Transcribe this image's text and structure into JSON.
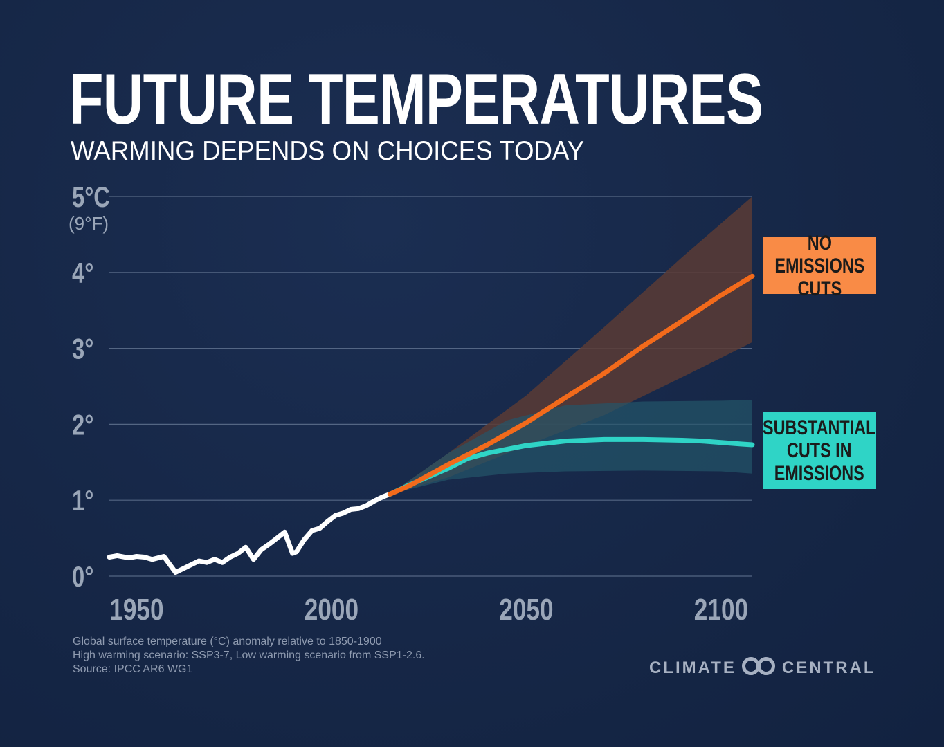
{
  "header": {
    "title": "FUTURE TEMPERATURES",
    "subtitle": "WARMING DEPENDS ON CHOICES TODAY"
  },
  "labels": {
    "high_scenario": "NO EMISSIONS\nCUTS",
    "low_scenario": "SUBSTANTIAL\nCUTS IN\nEMISSIONS"
  },
  "notes": [
    "Global surface temperature (°C) anomaly relative to 1850-1900",
    "High warming scenario: SSP3-7, Low warming scenario from SSP1-2.6.",
    "Source: IPCC AR6 WG1"
  ],
  "brand": {
    "left": "CLIMATE",
    "right": "CENTRAL",
    "logo_icon": "interlocking-rings-icon"
  },
  "colors": {
    "background": "#162747",
    "historical": "#ffffff",
    "high": "#f26a1b",
    "high_band": "#5a3b35",
    "low": "#2fd4c6",
    "low_band": "#24566a",
    "grid": "#5b6d8a",
    "axis_text": "#9aa6b8"
  },
  "chart_data": {
    "type": "line",
    "title": "FUTURE TEMPERATURES",
    "subtitle": "WARMING DEPENDS ON CHOICES TODAY",
    "xlabel": "",
    "ylabel": "Global surface temperature (°C) anomaly relative to 1850-1900",
    "xlim": [
      1943,
      2108
    ],
    "ylim": [
      0,
      5
    ],
    "x_ticks": [
      1950,
      2000,
      2050,
      2100
    ],
    "x_tick_labels": [
      "1950",
      "2000",
      "2050",
      "2100"
    ],
    "y_ticks": [
      0,
      1,
      2,
      3,
      4,
      5
    ],
    "y_tick_labels": [
      "0°",
      "1°",
      "2°",
      "3°",
      "4°",
      "5°C"
    ],
    "y_top_unit": "(9°F)",
    "grid": true,
    "series": [
      {
        "name": "Historical",
        "color": "#ffffff",
        "x": [
          1943,
          1945,
          1948,
          1950,
          1952,
          1954,
          1957,
          1960,
          1962,
          1964,
          1966,
          1968,
          1970,
          1972,
          1974,
          1976,
          1978,
          1980,
          1982,
          1984,
          1986,
          1988,
          1990,
          1991,
          1993,
          1995,
          1997,
          1999,
          2001,
          2003,
          2005,
          2007,
          2009,
          2011,
          2013,
          2015
        ],
        "values": [
          0.25,
          0.27,
          0.24,
          0.26,
          0.25,
          0.22,
          0.26,
          0.05,
          0.1,
          0.15,
          0.2,
          0.18,
          0.22,
          0.18,
          0.25,
          0.3,
          0.38,
          0.22,
          0.35,
          0.42,
          0.5,
          0.58,
          0.3,
          0.32,
          0.48,
          0.6,
          0.63,
          0.72,
          0.8,
          0.83,
          0.88,
          0.89,
          0.93,
          0.99,
          1.04,
          1.08
        ]
      },
      {
        "name": "No emissions cuts (SSP3-7.0)",
        "color": "#f26a1b",
        "x": [
          2015,
          2020,
          2030,
          2040,
          2050,
          2060,
          2070,
          2080,
          2090,
          2100,
          2108
        ],
        "values": [
          1.08,
          1.19,
          1.47,
          1.73,
          2.02,
          2.35,
          2.67,
          3.03,
          3.36,
          3.7,
          3.95
        ]
      },
      {
        "name": "Substantial cuts in emissions (SSP1-2.6)",
        "color": "#2fd4c6",
        "x": [
          2015,
          2020,
          2030,
          2035,
          2040,
          2045,
          2050,
          2060,
          2070,
          2080,
          2090,
          2095,
          2100,
          2105,
          2108
        ],
        "values": [
          1.08,
          1.2,
          1.42,
          1.55,
          1.62,
          1.67,
          1.72,
          1.78,
          1.8,
          1.8,
          1.79,
          1.78,
          1.76,
          1.74,
          1.73
        ]
      }
    ],
    "bands": [
      {
        "name": "No emissions cuts range",
        "color": "#5a3b35",
        "x": [
          2015,
          2030,
          2050,
          2070,
          2090,
          2108
        ],
        "lower": [
          1.08,
          1.3,
          1.72,
          2.12,
          2.62,
          3.08
        ],
        "upper": [
          1.08,
          1.62,
          2.38,
          3.28,
          4.2,
          5.0
        ]
      },
      {
        "name": "Substantial cuts range",
        "color": "#24566a",
        "x": [
          2015,
          2030,
          2045,
          2060,
          2080,
          2100,
          2108
        ],
        "lower": [
          1.08,
          1.27,
          1.35,
          1.38,
          1.39,
          1.38,
          1.35
        ],
        "upper": [
          1.08,
          1.62,
          2.05,
          2.25,
          2.3,
          2.31,
          2.32
        ]
      }
    ]
  }
}
